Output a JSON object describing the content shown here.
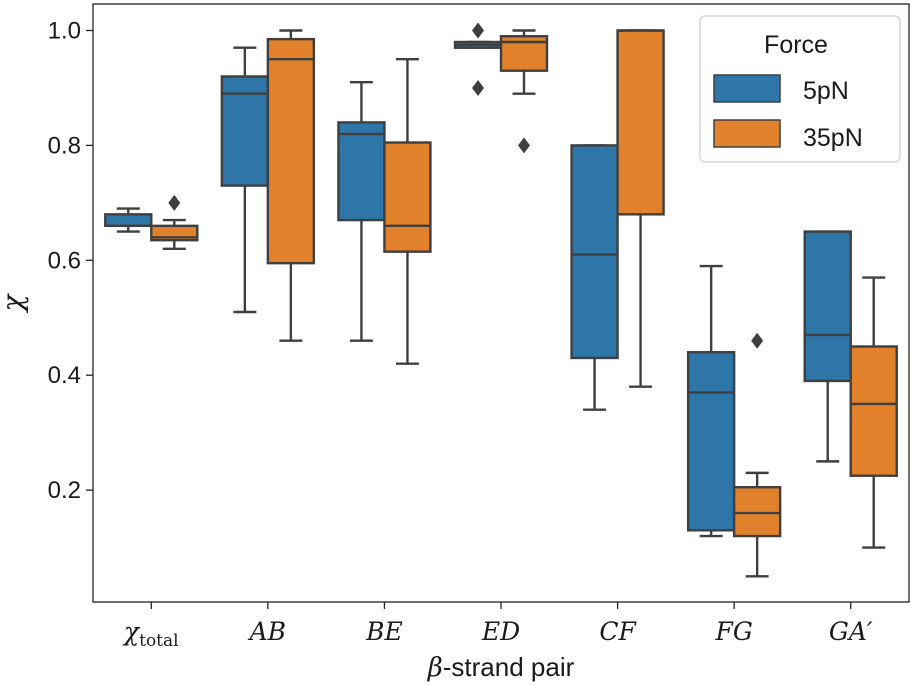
{
  "chart_data": {
    "type": "box",
    "title": "",
    "xlabel": "β-strand pair",
    "xlabel_prefix": "β",
    "xlabel_suffix": "-strand pair",
    "ylabel": "χ",
    "ylim": [
      0.02,
      1.05
    ],
    "yticks": [
      0.2,
      0.4,
      0.6,
      0.8,
      1.0
    ],
    "ytick_labels": [
      "0.2",
      "0.4",
      "0.6",
      "0.8",
      "1.0"
    ],
    "categories": [
      "χtotal",
      "AB",
      "BE",
      "ED",
      "CF",
      "FG",
      "GA′"
    ],
    "category_display": [
      {
        "main": "χ",
        "sub": "total"
      },
      {
        "main": "AB",
        "sub": ""
      },
      {
        "main": "BE",
        "sub": ""
      },
      {
        "main": "ED",
        "sub": ""
      },
      {
        "main": "CF",
        "sub": ""
      },
      {
        "main": "FG",
        "sub": ""
      },
      {
        "main": "GA′",
        "sub": ""
      }
    ],
    "legend": {
      "title": "Force",
      "placement": "top-right",
      "entries": [
        "5pN",
        "35pN"
      ]
    },
    "series": [
      {
        "name": "5pN",
        "color": "#2e75a8",
        "boxes": [
          {
            "q1": 0.66,
            "median": 0.66,
            "q3": 0.68,
            "whislo": 0.65,
            "whishi": 0.69,
            "fliers": []
          },
          {
            "q1": 0.73,
            "median": 0.89,
            "q3": 0.92,
            "whislo": 0.51,
            "whishi": 0.97,
            "fliers": []
          },
          {
            "q1": 0.67,
            "median": 0.82,
            "q3": 0.84,
            "whislo": 0.46,
            "whishi": 0.91,
            "fliers": []
          },
          {
            "q1": 0.97,
            "median": 0.975,
            "q3": 0.98,
            "whislo": 0.97,
            "whishi": 0.98,
            "fliers": [
              1.0,
              0.9
            ]
          },
          {
            "q1": 0.43,
            "median": 0.61,
            "q3": 0.8,
            "whislo": 0.34,
            "whishi": 0.8,
            "fliers": []
          },
          {
            "q1": 0.13,
            "median": 0.37,
            "q3": 0.44,
            "whislo": 0.12,
            "whishi": 0.59,
            "fliers": []
          },
          {
            "q1": 0.39,
            "median": 0.47,
            "q3": 0.65,
            "whislo": 0.25,
            "whishi": 0.65,
            "fliers": []
          }
        ]
      },
      {
        "name": "35pN",
        "color": "#e1812b",
        "boxes": [
          {
            "q1": 0.635,
            "median": 0.64,
            "q3": 0.66,
            "whislo": 0.62,
            "whishi": 0.67,
            "fliers": [
              0.7
            ]
          },
          {
            "q1": 0.595,
            "median": 0.95,
            "q3": 0.985,
            "whislo": 0.46,
            "whishi": 1.0,
            "fliers": []
          },
          {
            "q1": 0.615,
            "median": 0.66,
            "q3": 0.805,
            "whislo": 0.42,
            "whishi": 0.95,
            "fliers": []
          },
          {
            "q1": 0.93,
            "median": 0.98,
            "q3": 0.99,
            "whislo": 0.89,
            "whishi": 1.0,
            "fliers": [
              0.8
            ]
          },
          {
            "q1": 0.68,
            "median": 1.0,
            "q3": 1.0,
            "whislo": 0.38,
            "whishi": 1.0,
            "fliers": []
          },
          {
            "q1": 0.12,
            "median": 0.16,
            "q3": 0.205,
            "whislo": 0.05,
            "whishi": 0.23,
            "fliers": [
              0.46
            ]
          },
          {
            "q1": 0.225,
            "median": 0.35,
            "q3": 0.45,
            "whislo": 0.1,
            "whishi": 0.57,
            "fliers": []
          }
        ]
      }
    ]
  }
}
